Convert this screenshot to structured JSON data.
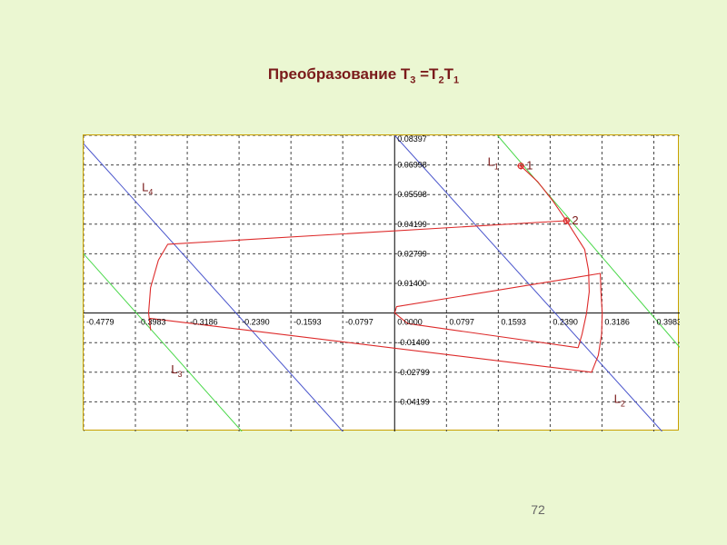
{
  "slide": {
    "title_prefix": "Преобразование T",
    "title_sub_a": "3",
    "title_mid": " =T",
    "title_sub_b": "2",
    "title_end": "T",
    "title_sub_c": "1",
    "page_number": "72"
  },
  "colors": {
    "background": "#ebf7d2",
    "title": "#7a1a1a",
    "curve": "#dd2a2a",
    "line_blue": "#4a55cc",
    "line_green": "#4ad84a",
    "axis": "#000000",
    "grid": "#444444"
  },
  "chart_data": {
    "type": "line",
    "x_ticks": [
      -0.4779,
      -0.3983,
      -0.3186,
      -0.239,
      -0.1593,
      -0.0797,
      0.0,
      0.0797,
      0.1593,
      0.239,
      0.3186,
      0.3983
    ],
    "x_tick_labels": [
      "-0.4779",
      "-0.3983",
      "-0.3186",
      "-0.2390",
      "-0.1593",
      "-0.0797",
      "0.0000",
      "0.0797",
      "0.1593",
      "0.2390",
      "0.3186",
      "0.3983"
    ],
    "y_ticks": [
      0.08397,
      0.06998,
      0.05598,
      0.04199,
      0.02799,
      0.014,
      -0.014,
      -0.02799,
      -0.04199
    ],
    "y_tick_labels": [
      "0.08397",
      "0.06998",
      "0.05598",
      "0.04199",
      "0.02799",
      "0.01400",
      "-0.01400",
      "-0.02799",
      "-0.04199"
    ],
    "xlim": [
      -0.4779,
      0.4381
    ],
    "ylim": [
      -0.05598,
      0.08397
    ],
    "grid": true,
    "lines": [
      {
        "label": "L",
        "sub": "1",
        "color": "green",
        "points": [
          [
            0.158,
            0.08397
          ],
          [
            0.4381,
            -0.01625
          ]
        ]
      },
      {
        "label": "L",
        "sub": "2",
        "color": "blue",
        "points": [
          [
            0.0,
            0.08397
          ],
          [
            0.411,
            -0.05598
          ]
        ]
      },
      {
        "label": "L",
        "sub": "3",
        "color": "green",
        "points": [
          [
            -0.4779,
            0.02799
          ],
          [
            -0.2347,
            -0.05598
          ]
        ]
      },
      {
        "label": "L",
        "sub": "4",
        "color": "blue",
        "points": [
          [
            -0.4779,
            0.07997
          ],
          [
            -0.0797,
            -0.05598
          ]
        ]
      }
    ],
    "line_labels": [
      {
        "label": "L",
        "sub": "1",
        "x": 0.143,
        "y": 0.0695
      },
      {
        "label": "L",
        "sub": "2",
        "x": 0.337,
        "y": -0.0425
      },
      {
        "label": "L",
        "sub": "3",
        "x": -0.3435,
        "y": -0.0285
      },
      {
        "label": "L",
        "sub": "4",
        "x": -0.3883,
        "y": 0.0575
      }
    ],
    "curves": [
      [
        [
          0.194,
          0.0695
        ],
        [
          0.22,
          0.062
        ],
        [
          0.243,
          0.053
        ],
        [
          0.264,
          0.0436
        ],
        [
          0.292,
          0.03
        ],
        [
          0.298,
          0.02
        ],
        [
          0.299,
          0.01
        ],
        [
          0.295,
          0.0
        ],
        [
          0.288,
          -0.01
        ],
        [
          0.282,
          -0.0164
        ]
      ],
      [
        [
          0.264,
          0.0436
        ],
        [
          -0.3486,
          0.0325
        ],
        [
          -0.363,
          0.025
        ],
        [
          -0.375,
          0.012
        ],
        [
          -0.378,
          0.0
        ],
        [
          -0.375,
          -0.008
        ],
        [
          -0.3766,
          -0.0025
        ],
        [
          0.3026,
          -0.028
        ],
        [
          0.313,
          -0.02
        ],
        [
          0.318,
          -0.01
        ],
        [
          0.319,
          0.0
        ],
        [
          0.317,
          0.01
        ],
        [
          0.316,
          0.0187
        ],
        [
          0.003,
          0.003
        ],
        [
          0.0,
          0.0
        ],
        [
          0.02,
          -0.005
        ],
        [
          0.282,
          -0.0164
        ]
      ]
    ],
    "points": [
      {
        "label": "1",
        "x": 0.194,
        "y": 0.0695
      },
      {
        "label": "2",
        "x": 0.264,
        "y": 0.0436
      }
    ]
  }
}
